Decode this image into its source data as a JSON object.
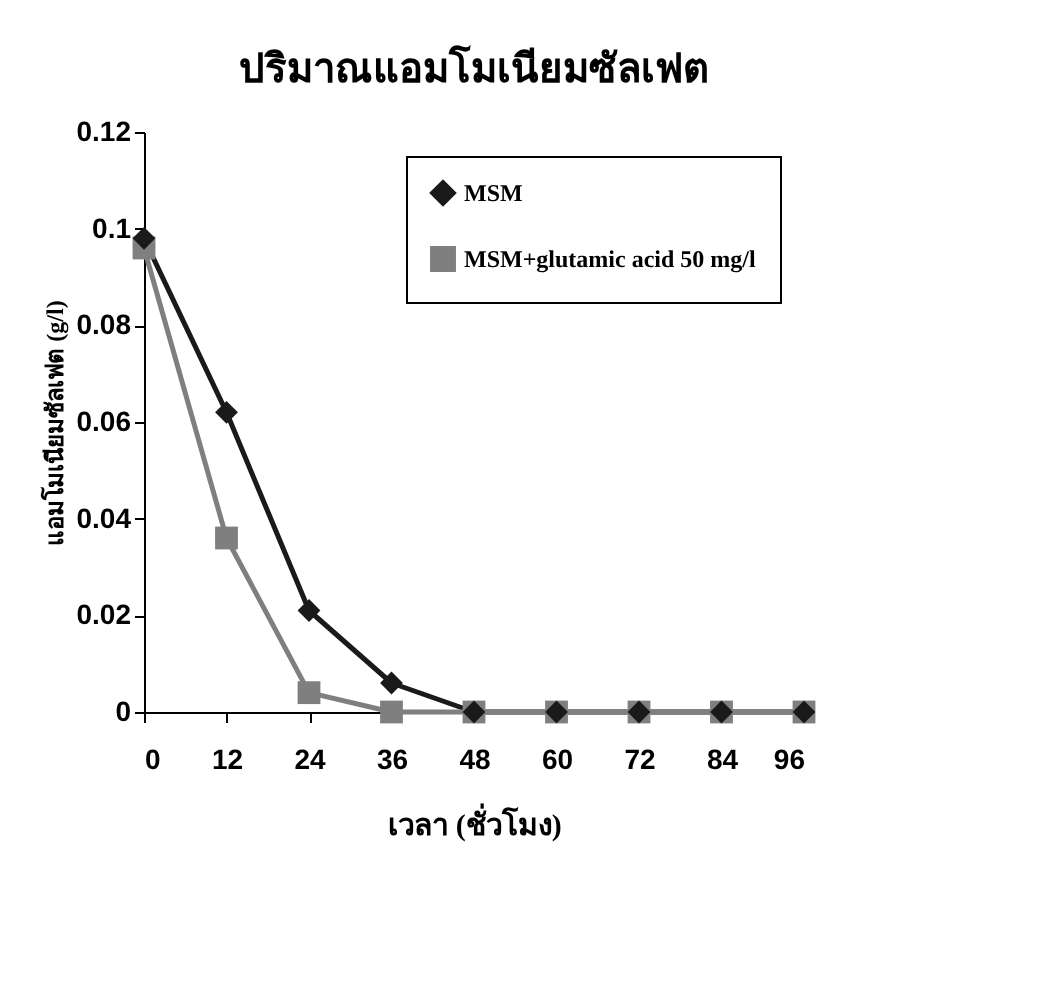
{
  "chart_data": {
    "type": "line",
    "title": "ปริมาณแอมโมเนียมซัลเฟต",
    "xlabel": "เวลา (ชั่วโมง)",
    "ylabel": "แอมโมเนียมซัลเฟต (g/l)",
    "x": [
      0,
      12,
      24,
      36,
      48,
      60,
      72,
      84,
      96
    ],
    "series": [
      {
        "name": "MSM",
        "color": "#1a1a1a",
        "marker": "diamond",
        "values": [
          0.098,
          0.062,
          0.021,
          0.006,
          0,
          0,
          0,
          0,
          0
        ]
      },
      {
        "name": "MSM+glutamic acid 50 mg/l",
        "color": "#7f7f7f",
        "marker": "square",
        "values": [
          0.096,
          0.036,
          0.004,
          0,
          0,
          0,
          0,
          0,
          0
        ]
      }
    ],
    "xlim": [
      0,
      96
    ],
    "xticks": [
      0,
      12,
      24,
      36,
      48,
      60,
      72,
      84,
      96
    ],
    "ylim": [
      0,
      0.12
    ],
    "yticks": [
      0,
      0.02,
      0.04,
      0.06,
      0.08,
      0.1,
      0.12
    ],
    "grid": false,
    "legend": "top right",
    "line_style": "solid"
  }
}
